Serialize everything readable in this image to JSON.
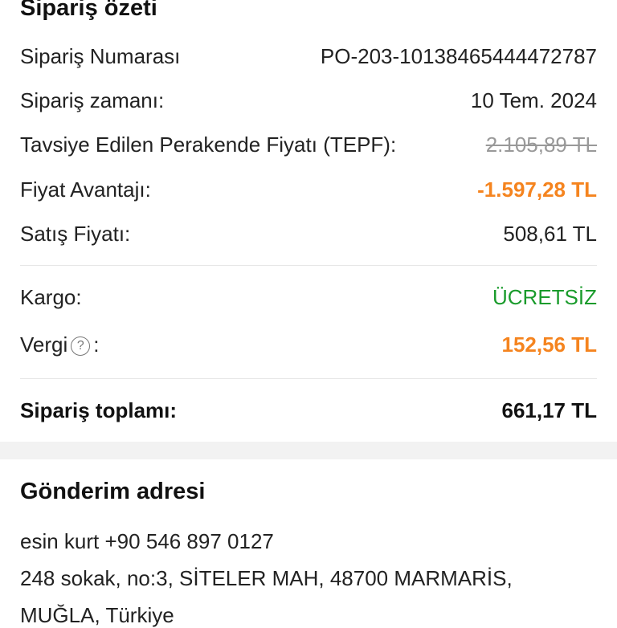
{
  "summary": {
    "title": "Sipariş özeti",
    "rows": [
      {
        "label": "Sipariş Numarası",
        "value": "PO-203-10138465444472787"
      },
      {
        "label": "Sipariş zamanı:",
        "value": "10 Tem. 2024"
      },
      {
        "label": "Tavsiye Edilen Perakende Fiyatı (TEPF):",
        "value": "2.105,89 TL"
      },
      {
        "label": "Fiyat Avantajı:",
        "value": "-1.597,28 TL"
      },
      {
        "label": "Satış Fiyatı:",
        "value": "508,61 TL"
      },
      {
        "label": "Kargo:",
        "value": "ÜCRETSİZ"
      },
      {
        "label": "Vergi",
        "suffix": ":",
        "value": "152,56 TL"
      },
      {
        "label": "Sipariş toplamı:",
        "value": "661,17 TL"
      }
    ]
  },
  "address": {
    "title": "Gönderim adresi",
    "line1": "esin kurt +90 546 897 0127",
    "line2": "248 sokak, no:3, SİTELER MAH, 48700 MARMARİS,",
    "line3": "MUĞLA, Türkiye"
  },
  "colors": {
    "accent": "#f5841f",
    "free": "#1a9b2c"
  },
  "icons": {
    "help": "question-circle-icon"
  }
}
